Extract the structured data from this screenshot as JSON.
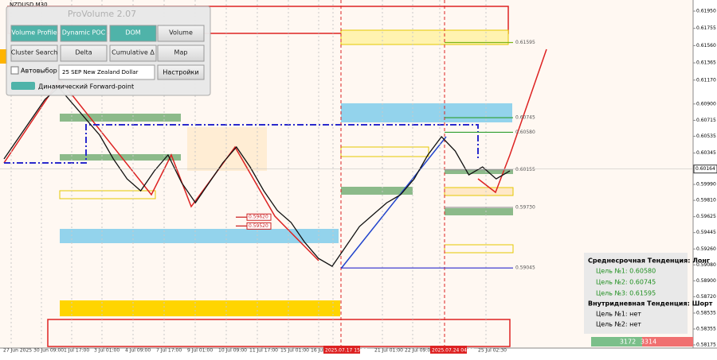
{
  "symbol": "NZDUSD,M30",
  "panel": {
    "title": "ProVolume 2.07",
    "buttons": [
      "Volume Profile",
      "Dynamic POC",
      "DOM",
      "Volume",
      "Cluster Search",
      "Delta",
      "Cumulative Δ",
      "Map"
    ],
    "checkbox": "Автовыбор",
    "instrument": "25 SEP New Zealand Dollar",
    "settings": "Настройки",
    "forward": "Динамический Forward-point"
  },
  "price_axis": {
    "ylim": [
      0.58175,
      0.6195
    ],
    "yticks": [
      {
        "value": 0.6195,
        "label": "0.61950"
      },
      {
        "value": 0.61755,
        "label": "0.61755"
      },
      {
        "value": 0.6156,
        "label": "0.61560"
      },
      {
        "value": 0.61365,
        "label": "0.61365"
      },
      {
        "value": 0.6117,
        "label": "0.61170"
      },
      {
        "value": 0.609,
        "label": "0.60900"
      },
      {
        "value": 0.60715,
        "label": "0.60715"
      },
      {
        "value": 0.60535,
        "label": "0.60535"
      },
      {
        "value": 0.60345,
        "label": "0.60345"
      },
      {
        "value": 0.5999,
        "label": "0.59990"
      },
      {
        "value": 0.5981,
        "label": "0.59810"
      },
      {
        "value": 0.59625,
        "label": "0.59625"
      },
      {
        "value": 0.59445,
        "label": "0.59445"
      },
      {
        "value": 0.5926,
        "label": "0.59260"
      },
      {
        "value": 0.5908,
        "label": "0.59080"
      },
      {
        "value": 0.589,
        "label": "0.58900"
      },
      {
        "value": 0.5872,
        "label": "0.58720"
      },
      {
        "value": 0.58535,
        "label": "0.58535"
      },
      {
        "value": 0.58355,
        "label": "0.58355"
      },
      {
        "value": 0.58175,
        "label": "0.58175"
      }
    ],
    "current": {
      "value": 0.60164,
      "label": "0.60164"
    }
  },
  "x_labels": [
    "27 Jun 2025",
    "30 Jun 09:00",
    "1 Jul 17:00",
    "3 Jul 01:00",
    "4 Jul 09:00",
    "7 Jul 17:00",
    "9 Jul 01:00",
    "10 Jul 09:00",
    "11 Jul 17:00",
    "15 Jul 01:00",
    "16 Jul",
    "2025.07.17 15:30",
    "21 Jul 01:00",
    "22 Jul 09:00",
    "2025.07.24 04:30",
    "25 Jul 02:30"
  ],
  "price": {
    "color": "#111111",
    "values": [
      0.60278,
      0.60503,
      0.60727,
      0.60952,
      0.61087,
      0.60907,
      0.60727,
      0.60548,
      0.60278,
      0.60053,
      0.59918,
      0.60143,
      0.60323,
      0.60008,
      0.59783,
      0.60008,
      0.60233,
      0.60413,
      0.60188,
      0.59918,
      0.59694,
      0.59559,
      0.59334,
      0.59154,
      0.59064,
      0.59289,
      0.59514,
      0.59649,
      0.59783,
      0.59873,
      0.60053,
      0.60323,
      0.6053,
      0.60368,
      0.60098,
      0.60188,
      0.60053,
      0.60143
    ]
  },
  "levels": [
    {
      "value": 0.61595,
      "label": "0.61595",
      "color": "#7cb518"
    },
    {
      "value": 0.60745,
      "label": "0.60745",
      "color": "#2e9e2e"
    },
    {
      "value": 0.6058,
      "label": "0.60580",
      "color": "#2e9e2e"
    },
    {
      "value": 0.60155,
      "label": "0.60155",
      "color": "#999999"
    },
    {
      "value": 0.5973,
      "label": "0.59730",
      "color": "#999999"
    },
    {
      "value": 0.59045,
      "label": "0.59045",
      "color": "#2a2acc"
    },
    {
      "value": 0.5962,
      "label": "0.59620",
      "color": "#cc2222"
    },
    {
      "value": 0.5952,
      "label": "0.59520",
      "color": "#cc2222"
    }
  ],
  "info": {
    "medium": "Среднесрочная Тенденция: Лонг",
    "targets_long": [
      "Цель №1: 0.60580",
      "Цель №2: 0.60745",
      "Цель №3: 0.61595"
    ],
    "intraday": "Внутридневная Тенденция: Шорт",
    "targets_short": [
      "Цель №1: нет",
      "Цель №2: нет"
    ]
  },
  "volume_bar": {
    "buy": "3172",
    "sell": "3314"
  }
}
